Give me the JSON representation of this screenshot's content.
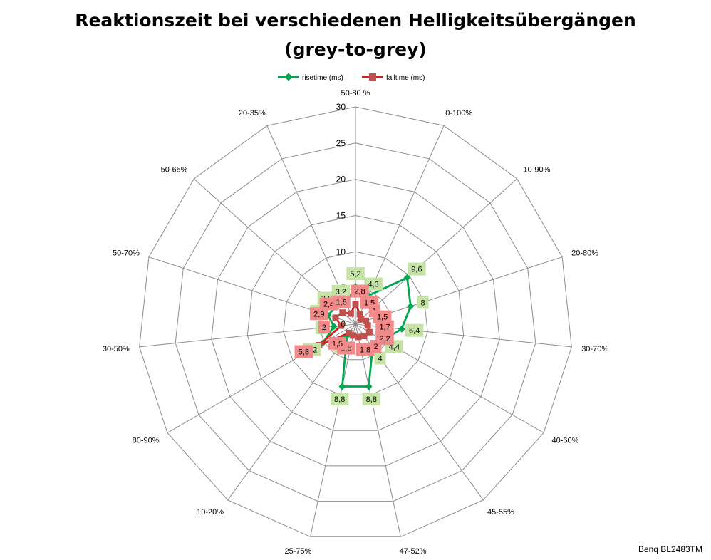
{
  "chart_data": {
    "type": "radar",
    "title_line1": "Reaktionszeit bei verschiedenen Helligkeitsübergängen",
    "title_line2": "(grey-to-grey)",
    "categories": [
      "50-80 %",
      "0-100%",
      "10-90%",
      "20-80%",
      "30-70%",
      "40-60%",
      "45-55%",
      "47-52%",
      "25-75%",
      "10-20%",
      "80-90%",
      "30-50%",
      "50-70%",
      "50-65%",
      "20-35%"
    ],
    "rlim": [
      0,
      30
    ],
    "rticks": [
      0,
      5,
      10,
      15,
      20,
      25,
      30
    ],
    "rtick_labels": [
      "0",
      "5",
      "10",
      "15",
      "20",
      "25",
      "30"
    ],
    "grid": true,
    "legend_position": "top",
    "series": [
      {
        "name": "risetime (ms)",
        "color": "#00a650",
        "marker": "diamond",
        "values": [
          5.2,
          4.3,
          9.6,
          8,
          6.4,
          4.4,
          4,
          8.8,
          8.8,
          2,
          5.2,
          3,
          4,
          3.6,
          3.2
        ],
        "labels": [
          "5,2",
          "4,3",
          "9,6",
          "8",
          "6,4",
          "4,4",
          "4",
          "8,8",
          "8,8",
          "2",
          "5,2",
          "3",
          "4",
          "3,6",
          "3,2"
        ],
        "label_color": "#c6e3a6"
      },
      {
        "name": "falltime (ms)",
        "color": "#cc2222",
        "marker": "square",
        "values": [
          2.8,
          1.5,
          1,
          1.5,
          1.7,
          2.2,
          2,
          1.8,
          1.6,
          1.5,
          5.8,
          2,
          2.9,
          2.4,
          1.6
        ],
        "labels": [
          "2,8",
          "1,5",
          "1",
          "1,5",
          "1,7",
          "2,2",
          "2",
          "1,8",
          "1,6",
          "1,5",
          "5,8",
          "2",
          "2,9",
          "2,4",
          "1,6"
        ],
        "label_color": "#f28a8a"
      }
    ],
    "annotation": "Benq BL2483TM"
  }
}
